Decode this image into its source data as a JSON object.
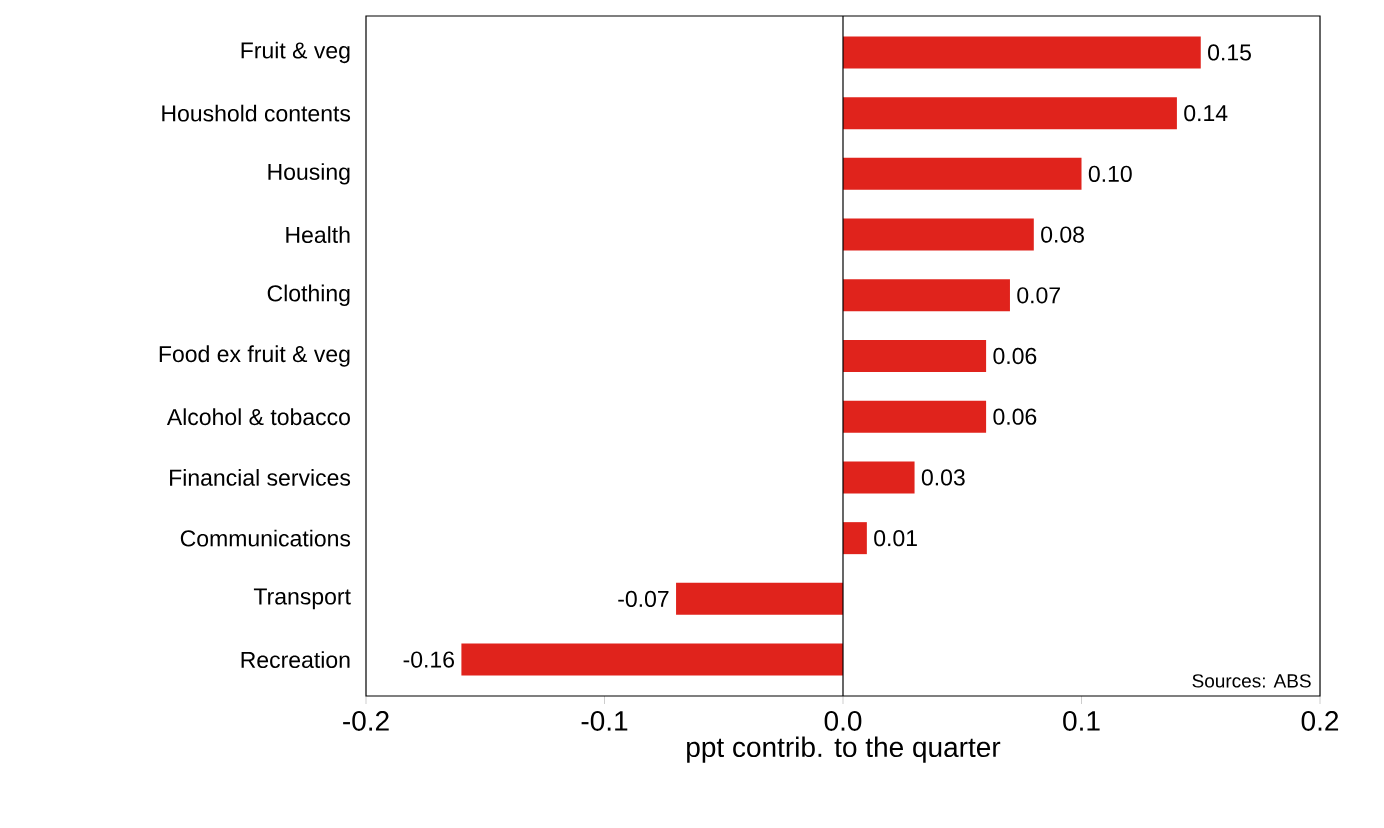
{
  "chart_data": {
    "type": "bar",
    "orientation": "horizontal",
    "categories": [
      "Fruit & veg",
      "Houshold contents",
      "Housing",
      "Health",
      "Clothing",
      "Food ex fruit & veg",
      "Alcohol & tobacco",
      "Financial services",
      "Communications",
      "Transport",
      "Recreation"
    ],
    "values": [
      0.15,
      0.14,
      0.1,
      0.08,
      0.07,
      0.06,
      0.06,
      0.03,
      0.01,
      -0.07,
      -0.16
    ],
    "value_labels": [
      "0.15",
      "0.14",
      "0.10",
      "0.08",
      "0.07",
      "0.06",
      "0.06",
      "0.03",
      "0.01",
      "-0.07",
      "-0.16"
    ],
    "color": "#e0231c",
    "xlim": [
      -0.2,
      0.2
    ],
    "xticks": [
      -0.2,
      -0.1,
      {
        "value": 0,
        "label": "0.0"
      },
      0.1,
      0.2
    ],
    "xlabel": "ppt contrib. to the quarter",
    "annotations": [
      "Sources: ABS"
    ]
  }
}
